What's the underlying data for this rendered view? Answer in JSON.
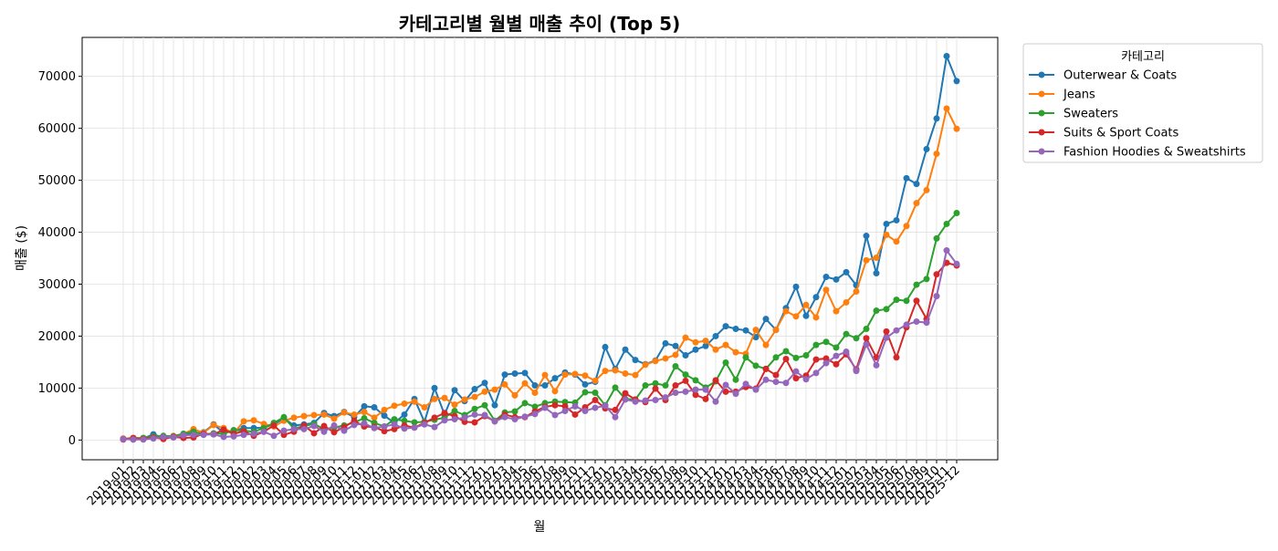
{
  "chart_data": {
    "type": "line",
    "title": "카테고리별 월별 매출 추이 (Top 5)",
    "x_label": "월",
    "y_label": "매출 ($)",
    "legend_title": "카테고리",
    "legend_position": "outside-upper-right",
    "grid": true,
    "categories": [
      "2019-01",
      "2019-02",
      "2019-03",
      "2019-04",
      "2019-05",
      "2019-06",
      "2019-07",
      "2019-08",
      "2019-09",
      "2019-10",
      "2019-11",
      "2019-12",
      "2020-01",
      "2020-02",
      "2020-03",
      "2020-04",
      "2020-05",
      "2020-06",
      "2020-07",
      "2020-08",
      "2020-09",
      "2020-10",
      "2020-11",
      "2020-12",
      "2021-01",
      "2021-02",
      "2021-03",
      "2021-04",
      "2021-05",
      "2021-06",
      "2021-07",
      "2021-08",
      "2021-09",
      "2021-10",
      "2021-11",
      "2021-12",
      "2022-01",
      "2022-02",
      "2022-03",
      "2022-04",
      "2022-05",
      "2022-06",
      "2022-07",
      "2022-08",
      "2022-09",
      "2022-10",
      "2022-11",
      "2022-12",
      "2023-01",
      "2023-02",
      "2023-03",
      "2023-04",
      "2023-05",
      "2023-06",
      "2023-07",
      "2023-08",
      "2023-09",
      "2023-10",
      "2023-11",
      "2023-12",
      "2024-01",
      "2024-02",
      "2024-03",
      "2024-04",
      "2024-05",
      "2024-06",
      "2024-07",
      "2024-08",
      "2024-09",
      "2024-10",
      "2024-11",
      "2024-12",
      "2025-01",
      "2025-02",
      "2025-03",
      "2025-04",
      "2025-05",
      "2025-06",
      "2025-07",
      "2025-08",
      "2025-09",
      "2025-10",
      "2025-11",
      "2025-12"
    ],
    "ylim": [
      -3800,
      77500
    ],
    "yticks": [
      0,
      10000,
      20000,
      30000,
      40000,
      50000,
      60000,
      70000
    ],
    "series": [
      {
        "name": "Outerwear & Coats",
        "color": "#1f77b4",
        "values": [
          200,
          100,
          300,
          1100,
          400,
          600,
          1100,
          1300,
          1500,
          3000,
          1400,
          1800,
          2300,
          2300,
          2400,
          3000,
          4200,
          2800,
          3000,
          3300,
          5200,
          4600,
          5400,
          4400,
          6500,
          6300,
          4700,
          3300,
          4900,
          7900,
          3500,
          10000,
          4900,
          9600,
          7500,
          9800,
          11000,
          6700,
          12600,
          12800,
          12900,
          10500,
          10500,
          11900,
          13000,
          12600,
          10700,
          11200,
          17900,
          13700,
          17400,
          15400,
          14600,
          15300,
          18600,
          18100,
          16300,
          17400,
          18100,
          20000,
          21900,
          21400,
          21100,
          19800,
          23300,
          21200,
          25400,
          29500,
          23900,
          27500,
          31400,
          30900,
          32300,
          29800,
          39300,
          32100,
          41600,
          42300,
          50400,
          49300,
          56000,
          61900,
          73900,
          69100
        ]
      },
      {
        "name": "Jeans",
        "color": "#ff7f0e",
        "values": [
          300,
          400,
          400,
          600,
          500,
          800,
          1200,
          2100,
          1400,
          2900,
          2300,
          1300,
          3600,
          3800,
          3100,
          2600,
          3700,
          4300,
          4600,
          4800,
          4900,
          4100,
          5300,
          4900,
          5400,
          4300,
          5800,
          6600,
          7000,
          7400,
          6300,
          7900,
          8100,
          6800,
          7800,
          8300,
          9300,
          9700,
          10700,
          8600,
          10900,
          9100,
          12500,
          9400,
          12600,
          12700,
          12400,
          11400,
          13300,
          13400,
          12800,
          12500,
          14500,
          15200,
          15700,
          16400,
          19700,
          18800,
          19100,
          17400,
          18300,
          16900,
          16600,
          21200,
          18300,
          21200,
          24800,
          23800,
          26000,
          23600,
          28900,
          24800,
          26500,
          28600,
          34600,
          35100,
          39500,
          38200,
          41200,
          45600,
          48100,
          55100,
          63800,
          59900
        ]
      },
      {
        "name": "Sweaters",
        "color": "#2ca02c",
        "values": [
          200,
          300,
          400,
          700,
          800,
          700,
          1200,
          1600,
          1100,
          1300,
          1200,
          1900,
          1800,
          1600,
          2300,
          3300,
          4400,
          2200,
          2700,
          3100,
          2100,
          2400,
          2800,
          3400,
          4200,
          3300,
          2600,
          4000,
          3700,
          3400,
          3500,
          3900,
          4300,
          5600,
          4800,
          6000,
          6700,
          3700,
          5300,
          5500,
          7100,
          6400,
          7100,
          7400,
          7300,
          7200,
          9200,
          9100,
          6700,
          10100,
          7900,
          7800,
          10500,
          10900,
          10500,
          14200,
          12600,
          11500,
          10100,
          11300,
          14900,
          11600,
          15900,
          14300,
          13700,
          15900,
          17100,
          15800,
          16300,
          18300,
          18900,
          17800,
          20400,
          19600,
          21400,
          24900,
          25200,
          27000,
          26800,
          29900,
          31000,
          38800,
          41600,
          43700
        ]
      },
      {
        "name": "Suits & Sport Coats",
        "color": "#d62728",
        "values": [
          100,
          400,
          200,
          500,
          200,
          600,
          400,
          500,
          1200,
          1100,
          2000,
          1200,
          1700,
          800,
          1600,
          2800,
          1000,
          1600,
          2800,
          1300,
          2700,
          1500,
          2500,
          3700,
          2600,
          2500,
          1700,
          2100,
          2800,
          2400,
          3300,
          4300,
          5200,
          4600,
          3500,
          3400,
          4600,
          3600,
          4900,
          4400,
          4400,
          5500,
          6400,
          6700,
          6500,
          4900,
          6300,
          7700,
          6100,
          5800,
          9000,
          7800,
          7300,
          9900,
          7700,
          10500,
          11400,
          8700,
          7900,
          11500,
          9300,
          9300,
          10200,
          9900,
          13700,
          12500,
          15600,
          11900,
          12400,
          15500,
          15700,
          14600,
          16500,
          13600,
          19600,
          15900,
          20900,
          15900,
          21700,
          26800,
          23300,
          31900,
          34100,
          33600
        ]
      },
      {
        "name": "Fashion Hoodies & Sweatshirts",
        "color": "#9467bd",
        "values": [
          200,
          100,
          100,
          300,
          600,
          500,
          900,
          1000,
          1000,
          1100,
          600,
          700,
          1000,
          1200,
          1600,
          800,
          1800,
          2100,
          2100,
          2700,
          1600,
          2800,
          1800,
          2900,
          3200,
          2300,
          2600,
          3000,
          2200,
          2400,
          3000,
          2500,
          3800,
          4000,
          4300,
          4900,
          4800,
          3600,
          4400,
          4000,
          4500,
          5000,
          6200,
          4800,
          5600,
          6500,
          5600,
          6200,
          6600,
          4400,
          7800,
          7400,
          7600,
          7700,
          8200,
          9100,
          9300,
          9700,
          9700,
          7400,
          10600,
          8900,
          10800,
          9700,
          11600,
          11200,
          11000,
          13200,
          11700,
          12900,
          14800,
          16200,
          17000,
          13300,
          18400,
          14400,
          19700,
          21100,
          22200,
          22800,
          22600,
          27700,
          36500,
          33900
        ]
      }
    ]
  }
}
